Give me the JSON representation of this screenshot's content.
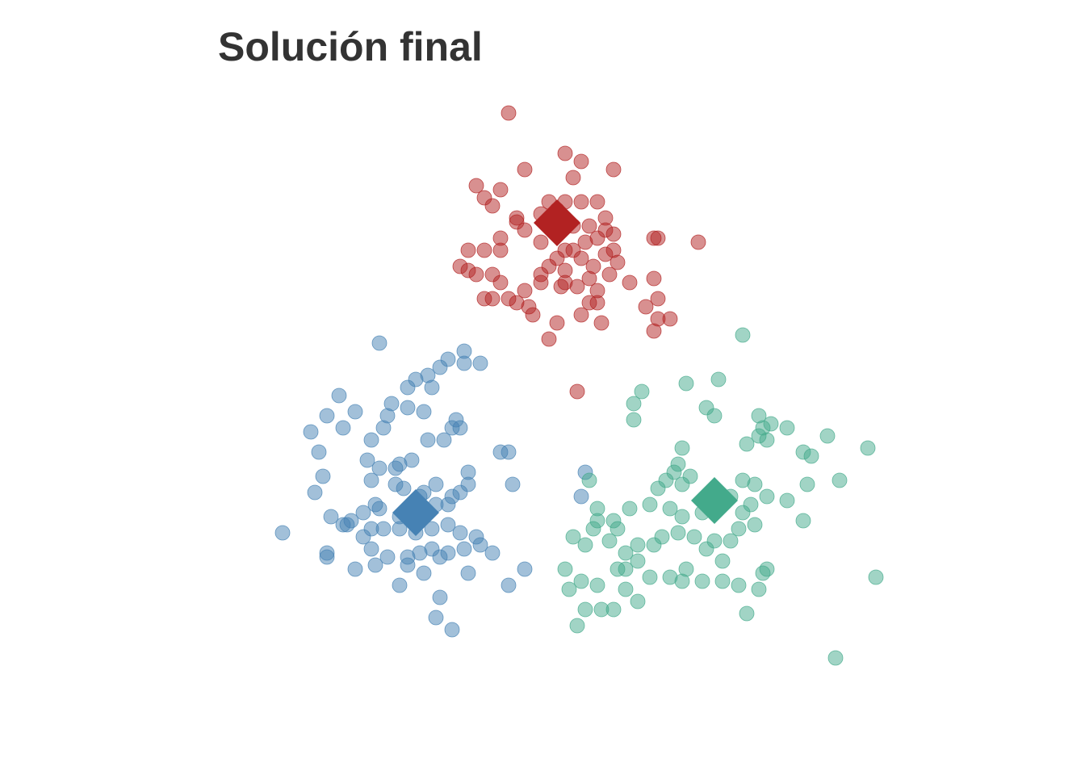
{
  "chart_data": {
    "type": "scatter",
    "title": "Solución final",
    "xlabel": "",
    "ylabel": "",
    "grid": false,
    "legend": "none",
    "xlim": [
      -4.0,
      4.0
    ],
    "ylim": [
      -4.0,
      4.0
    ],
    "series": [
      {
        "color": "#B22222",
        "centroid": [
          0.1,
          2.24
        ],
        "points": [
          [
            -0.5,
            3.6
          ],
          [
            0.2,
            3.1
          ],
          [
            0.4,
            3.0
          ],
          [
            0.3,
            2.8
          ],
          [
            -0.3,
            2.9
          ],
          [
            0.8,
            2.9
          ],
          [
            -0.4,
            2.3
          ],
          [
            -0.9,
            2.7
          ],
          [
            0.0,
            2.5
          ],
          [
            0.2,
            2.5
          ],
          [
            0.4,
            2.5
          ],
          [
            0.6,
            2.5
          ],
          [
            0.7,
            2.3
          ],
          [
            0.8,
            2.1
          ],
          [
            1.35,
            2.05
          ],
          [
            1.3,
            1.55
          ],
          [
            1.3,
            2.05
          ],
          [
            1.85,
            2.0
          ],
          [
            0.5,
            2.2
          ],
          [
            0.3,
            2.2
          ],
          [
            0.1,
            2.1
          ],
          [
            -0.1,
            2.0
          ],
          [
            0.2,
            1.9
          ],
          [
            -0.6,
            1.9
          ],
          [
            -0.8,
            1.9
          ],
          [
            -1.0,
            1.9
          ],
          [
            -1.1,
            1.7
          ],
          [
            -0.9,
            1.6
          ],
          [
            -0.6,
            1.5
          ],
          [
            -0.7,
            1.3
          ],
          [
            -0.8,
            1.3
          ],
          [
            -0.4,
            1.25
          ],
          [
            -0.25,
            1.2
          ],
          [
            -0.2,
            1.1
          ],
          [
            0.15,
            1.45
          ],
          [
            0.35,
            1.45
          ],
          [
            0.6,
            1.4
          ],
          [
            1.0,
            1.5
          ],
          [
            1.2,
            1.2
          ],
          [
            1.35,
            1.05
          ],
          [
            1.5,
            1.05
          ],
          [
            1.35,
            1.3
          ],
          [
            0.5,
            1.25
          ],
          [
            0.5,
            1.55
          ],
          [
            0.2,
            1.65
          ],
          [
            0.1,
            1.8
          ],
          [
            0.0,
            1.7
          ],
          [
            -0.1,
            1.6
          ],
          [
            0.3,
            1.9
          ],
          [
            0.45,
            2.0
          ],
          [
            0.6,
            2.05
          ],
          [
            0.7,
            2.15
          ],
          [
            -0.6,
            2.65
          ],
          [
            -0.7,
            2.45
          ],
          [
            -0.4,
            2.25
          ],
          [
            -0.3,
            2.15
          ],
          [
            -0.6,
            2.05
          ],
          [
            -0.8,
            2.55
          ],
          [
            0.1,
            2.4
          ],
          [
            -0.1,
            2.35
          ],
          [
            0.0,
            0.8
          ],
          [
            0.2,
            1.5
          ],
          [
            -0.1,
            1.5
          ],
          [
            -0.3,
            1.4
          ],
          [
            -0.5,
            1.3
          ],
          [
            -0.7,
            1.6
          ],
          [
            -1.0,
            1.65
          ],
          [
            0.4,
            1.8
          ],
          [
            0.55,
            1.7
          ],
          [
            0.7,
            1.85
          ],
          [
            0.85,
            1.75
          ],
          [
            0.6,
            1.25
          ],
          [
            0.75,
            1.6
          ],
          [
            0.8,
            1.9
          ],
          [
            1.3,
            0.9
          ],
          [
            0.1,
            1.0
          ],
          [
            0.4,
            1.1
          ],
          [
            0.65,
            1.0
          ],
          [
            0.35,
            0.15
          ]
        ]
      },
      {
        "color": "#4682B4",
        "centroid": [
          -1.65,
          -1.35
        ],
        "points": [
          [
            -3.3,
            -1.6
          ],
          [
            -2.6,
            0.1
          ],
          [
            -2.4,
            -0.1
          ],
          [
            -1.75,
            0.2
          ],
          [
            -1.65,
            0.3
          ],
          [
            -1.15,
            -0.2
          ],
          [
            -1.1,
            -0.3
          ],
          [
            -1.2,
            -0.3
          ],
          [
            -1.3,
            -0.45
          ],
          [
            -1.5,
            -0.45
          ],
          [
            -1.7,
            -0.7
          ],
          [
            -1.85,
            -0.75
          ],
          [
            -1.9,
            -0.8
          ],
          [
            -2.1,
            -0.8
          ],
          [
            -2.25,
            -0.7
          ],
          [
            -2.2,
            -0.95
          ],
          [
            -1.9,
            -1.0
          ],
          [
            -1.8,
            -1.05
          ],
          [
            -1.6,
            -1.15
          ],
          [
            -1.4,
            -1.25
          ],
          [
            -1.25,
            -1.25
          ],
          [
            -1.0,
            -0.85
          ],
          [
            -1.0,
            -1.0
          ],
          [
            -1.1,
            -1.1
          ],
          [
            -1.2,
            -1.15
          ],
          [
            -1.4,
            -1.0
          ],
          [
            -1.55,
            -1.1
          ],
          [
            -1.7,
            -1.3
          ],
          [
            -1.85,
            -1.4
          ],
          [
            -2.1,
            -1.3
          ],
          [
            -2.3,
            -1.35
          ],
          [
            -2.2,
            -1.55
          ],
          [
            -2.05,
            -1.55
          ],
          [
            -1.85,
            -1.55
          ],
          [
            -1.65,
            -1.6
          ],
          [
            -1.45,
            -1.55
          ],
          [
            -1.25,
            -1.5
          ],
          [
            -1.1,
            -1.6
          ],
          [
            -0.9,
            -1.65
          ],
          [
            -0.85,
            -1.75
          ],
          [
            -1.05,
            -1.8
          ],
          [
            -1.25,
            -1.85
          ],
          [
            -1.45,
            -1.8
          ],
          [
            -1.6,
            -1.85
          ],
          [
            -1.75,
            -1.9
          ],
          [
            -2.0,
            -1.9
          ],
          [
            -2.2,
            -1.8
          ],
          [
            -2.3,
            -1.65
          ],
          [
            -2.5,
            -1.5
          ],
          [
            -2.55,
            -1.5
          ],
          [
            -2.7,
            -1.4
          ],
          [
            -2.9,
            -1.1
          ],
          [
            -2.8,
            -0.9
          ],
          [
            -2.85,
            -0.6
          ],
          [
            -2.95,
            -0.35
          ],
          [
            -2.75,
            -0.15
          ],
          [
            -2.55,
            -0.3
          ],
          [
            -2.2,
            -0.45
          ],
          [
            -2.05,
            -0.3
          ],
          [
            -2.0,
            -0.15
          ],
          [
            -1.75,
            -0.05
          ],
          [
            -1.55,
            -0.1
          ],
          [
            -1.45,
            0.2
          ],
          [
            -1.25,
            0.55
          ],
          [
            -1.35,
            0.45
          ],
          [
            -1.5,
            0.35
          ],
          [
            -1.35,
            -1.9
          ],
          [
            -1.55,
            -2.1
          ],
          [
            -1.75,
            -2.0
          ],
          [
            -2.15,
            -2.0
          ],
          [
            -2.4,
            -2.05
          ],
          [
            -2.75,
            -1.85
          ],
          [
            -2.75,
            -1.9
          ],
          [
            -1.0,
            -2.1
          ],
          [
            -0.7,
            -1.85
          ],
          [
            -0.5,
            -2.25
          ],
          [
            -0.3,
            -2.05
          ],
          [
            -1.35,
            -2.4
          ],
          [
            -1.4,
            -2.65
          ],
          [
            -1.2,
            -2.8
          ],
          [
            -1.85,
            -2.25
          ],
          [
            -2.45,
            -1.45
          ],
          [
            -2.15,
            -1.25
          ],
          [
            -0.5,
            -0.6
          ],
          [
            -0.45,
            -1.0
          ],
          [
            -0.85,
            0.5
          ],
          [
            -2.1,
            0.75
          ],
          [
            -1.95,
            0.0
          ],
          [
            0.45,
            -0.85
          ],
          [
            0.4,
            -1.15
          ],
          [
            -0.6,
            -0.6
          ],
          [
            -1.05,
            0.5
          ],
          [
            -1.05,
            0.65
          ]
        ]
      },
      {
        "color": "#43AA8B",
        "centroid": [
          2.05,
          -1.2
        ],
        "points": [
          [
            2.4,
            0.85
          ],
          [
            1.7,
            0.25
          ],
          [
            1.15,
            0.15
          ],
          [
            1.05,
            0.0
          ],
          [
            1.05,
            -0.2
          ],
          [
            2.1,
            0.3
          ],
          [
            1.95,
            -0.05
          ],
          [
            2.05,
            -0.15
          ],
          [
            2.6,
            -0.15
          ],
          [
            2.75,
            -0.25
          ],
          [
            2.95,
            -0.3
          ],
          [
            2.65,
            -0.3
          ],
          [
            2.6,
            -0.4
          ],
          [
            3.45,
            -0.4
          ],
          [
            3.15,
            -0.6
          ],
          [
            3.95,
            -0.55
          ],
          [
            3.6,
            -0.95
          ],
          [
            3.2,
            -1.0
          ],
          [
            1.65,
            -0.55
          ],
          [
            1.6,
            -0.75
          ],
          [
            1.55,
            -0.85
          ],
          [
            1.75,
            -0.9
          ],
          [
            1.65,
            -1.0
          ],
          [
            1.45,
            -0.95
          ],
          [
            1.35,
            -1.05
          ],
          [
            1.25,
            -1.25
          ],
          [
            1.5,
            -1.3
          ],
          [
            1.65,
            -1.4
          ],
          [
            1.9,
            -1.35
          ],
          [
            2.1,
            -1.25
          ],
          [
            2.25,
            -1.15
          ],
          [
            2.4,
            -0.95
          ],
          [
            2.55,
            -1.0
          ],
          [
            2.7,
            -1.15
          ],
          [
            2.95,
            -1.2
          ],
          [
            2.5,
            -1.25
          ],
          [
            2.4,
            -1.35
          ],
          [
            2.55,
            -1.5
          ],
          [
            2.35,
            -1.55
          ],
          [
            2.25,
            -1.7
          ],
          [
            2.05,
            -1.7
          ],
          [
            1.95,
            -1.8
          ],
          [
            1.8,
            -1.65
          ],
          [
            1.6,
            -1.6
          ],
          [
            1.4,
            -1.65
          ],
          [
            1.3,
            -1.75
          ],
          [
            1.1,
            -1.75
          ],
          [
            0.95,
            -1.85
          ],
          [
            0.95,
            -2.05
          ],
          [
            0.85,
            -2.05
          ],
          [
            1.1,
            -1.95
          ],
          [
            0.75,
            -1.7
          ],
          [
            0.5,
            -0.95
          ],
          [
            0.6,
            -1.3
          ],
          [
            0.6,
            -1.45
          ],
          [
            0.55,
            -1.55
          ],
          [
            0.45,
            -1.75
          ],
          [
            0.3,
            -1.65
          ],
          [
            1.25,
            -2.15
          ],
          [
            1.5,
            -2.15
          ],
          [
            1.65,
            -2.2
          ],
          [
            1.9,
            -2.2
          ],
          [
            2.15,
            -2.2
          ],
          [
            2.35,
            -2.25
          ],
          [
            2.65,
            -2.1
          ],
          [
            2.6,
            -2.3
          ],
          [
            2.45,
            -2.6
          ],
          [
            2.7,
            -2.05
          ],
          [
            2.15,
            -1.95
          ],
          [
            1.7,
            -2.05
          ],
          [
            1.0,
            -1.3
          ],
          [
            0.8,
            -1.45
          ],
          [
            0.4,
            -2.2
          ],
          [
            0.25,
            -2.3
          ],
          [
            0.65,
            -2.55
          ],
          [
            0.35,
            -2.75
          ],
          [
            0.8,
            -2.55
          ],
          [
            1.1,
            -2.45
          ],
          [
            0.95,
            -2.3
          ],
          [
            0.6,
            -2.25
          ],
          [
            3.15,
            -1.45
          ],
          [
            4.05,
            -2.15
          ],
          [
            3.55,
            -3.15
          ],
          [
            2.45,
            -0.5
          ],
          [
            2.7,
            -0.45
          ],
          [
            3.25,
            -0.65
          ],
          [
            0.2,
            -2.05
          ],
          [
            0.45,
            -2.55
          ],
          [
            0.85,
            -1.55
          ]
        ]
      }
    ]
  }
}
